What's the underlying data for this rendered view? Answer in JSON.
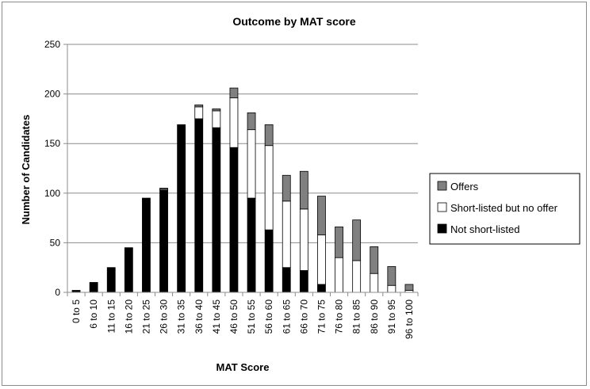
{
  "chart_data": {
    "type": "bar",
    "stacked": true,
    "title": "Outcome by MAT score",
    "xlabel": "MAT Score",
    "ylabel": "Number of Candidates",
    "ylim": [
      0,
      250
    ],
    "yticks": [
      0,
      50,
      100,
      150,
      200,
      250
    ],
    "grid": true,
    "legend_position": "right",
    "categories": [
      "0 to 5",
      "6 to 10",
      "11 to 15",
      "16 to 20",
      "21 to 25",
      "26 to 30",
      "31 to 35",
      "36 to 40",
      "41 to 45",
      "46 to 50",
      "51 to 55",
      "56 to 60",
      "61 to 65",
      "66 to 70",
      "71 to 75",
      "76 to 80",
      "81 to 85",
      "86 to 90",
      "91 to 95",
      "96 to 100"
    ],
    "series": [
      {
        "name": "Not short-listed",
        "color": "#000000",
        "values": [
          2,
          10,
          25,
          45,
          95,
          103,
          169,
          175,
          166,
          146,
          95,
          63,
          25,
          22,
          8,
          0,
          0,
          0,
          0,
          0
        ]
      },
      {
        "name": "Short-listed but no offer",
        "color": "#ffffff",
        "values": [
          0,
          0,
          0,
          0,
          0,
          1,
          0,
          12,
          17,
          50,
          69,
          85,
          67,
          62,
          50,
          35,
          32,
          19,
          7,
          2
        ]
      },
      {
        "name": "Offers",
        "color": "#808080",
        "values": [
          0,
          0,
          0,
          0,
          0,
          1,
          0,
          2,
          2,
          10,
          17,
          21,
          26,
          38,
          39,
          31,
          41,
          27,
          19,
          6
        ]
      }
    ],
    "legend_order": [
      "Offers",
      "Short-listed but no offer",
      "Not short-listed"
    ]
  }
}
